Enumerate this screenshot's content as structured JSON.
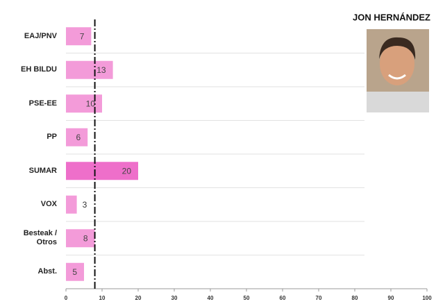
{
  "chart_data": {
    "type": "hbar",
    "title": "JON HERNÁNDEZ",
    "categories": [
      "EAJ/PNV",
      "EH BILDU",
      "PSE-EE",
      "PP",
      "SUMAR",
      "VOX",
      "Besteak / Otros",
      "Abst."
    ],
    "values": [
      7,
      13,
      10,
      6,
      20,
      3,
      8,
      5
    ],
    "colors": [
      "#f39bd9",
      "#f39bd9",
      "#f39bd9",
      "#f39bd9",
      "#ee6fca",
      "#f39bd9",
      "#f39bd9",
      "#f39bd9"
    ],
    "reference_line": 8,
    "xlim": [
      0,
      100
    ],
    "xticks": [
      0,
      10,
      20,
      30,
      40,
      50,
      60,
      70,
      80,
      90,
      100
    ],
    "grid": true
  }
}
